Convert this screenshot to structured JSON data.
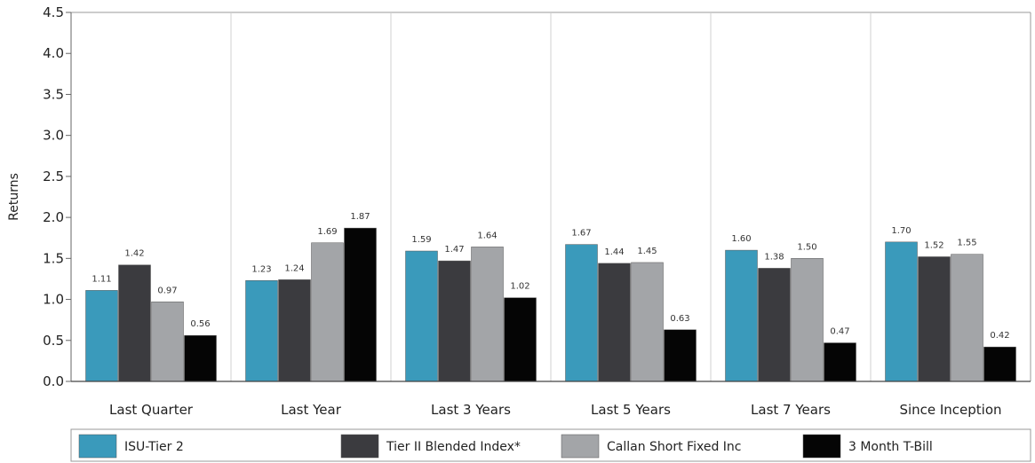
{
  "chart_data": {
    "type": "bar",
    "title": "",
    "xlabel": "",
    "ylabel": "Returns",
    "ylim": [
      0,
      4.5
    ],
    "yticks": [
      "0.0",
      "0.5",
      "1.0",
      "1.5",
      "2.0",
      "2.5",
      "3.0",
      "3.5",
      "4.0",
      "4.5"
    ],
    "categories": [
      "Last Quarter",
      "Last Year",
      "Last 3 Years",
      "Last 5 Years",
      "Last 7 Years",
      "Since Inception"
    ],
    "series": [
      {
        "name": "ISU-Tier 2",
        "color": "#3a9abb",
        "values": [
          1.11,
          1.23,
          1.59,
          1.67,
          1.6,
          1.7
        ],
        "labels": [
          "1.11",
          "1.23",
          "1.59",
          "1.67",
          "1.60",
          "1.70"
        ]
      },
      {
        "name": "Tier II Blended Index*",
        "color": "#3b3b3f",
        "values": [
          1.42,
          1.24,
          1.47,
          1.44,
          1.38,
          1.52
        ],
        "labels": [
          "1.42",
          "1.24",
          "1.47",
          "1.44",
          "1.38",
          "1.52"
        ]
      },
      {
        "name": "Callan Short Fixed Inc",
        "color": "#a3a5a8",
        "values": [
          0.97,
          1.69,
          1.64,
          1.45,
          1.5,
          1.55
        ],
        "labels": [
          "0.97",
          "1.69",
          "1.64",
          "1.45",
          "1.50",
          "1.55"
        ]
      },
      {
        "name": "3 Month T-Bill",
        "color": "#050505",
        "values": [
          0.56,
          1.87,
          1.02,
          0.63,
          0.47,
          0.42
        ],
        "labels": [
          "0.56",
          "1.87",
          "1.02",
          "0.63",
          "0.47",
          "0.42"
        ]
      }
    ],
    "grid": false,
    "legend": "bottom"
  }
}
